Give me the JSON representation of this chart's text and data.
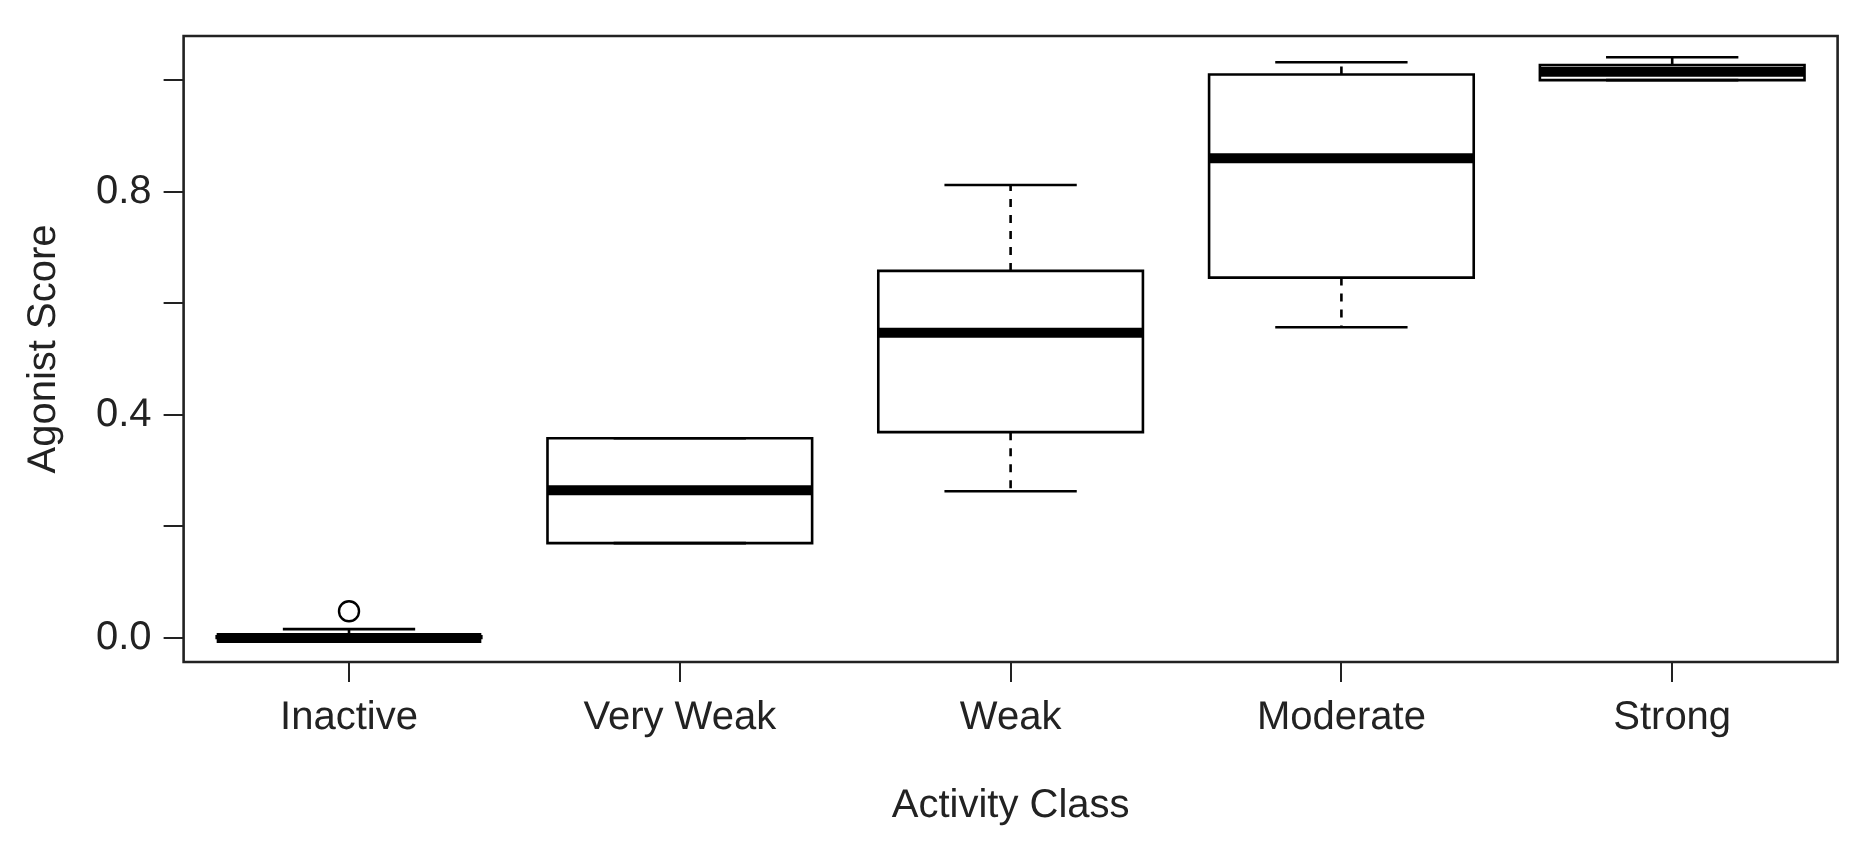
{
  "chart_data": {
    "type": "box",
    "xlabel": "Activity Class",
    "ylabel": "Agonist Score",
    "categories": [
      "Inactive",
      "Very Weak",
      "Weak",
      "Moderate",
      "Strong"
    ],
    "boxes": [
      {
        "low": 0.0,
        "q1": 0.0,
        "median": 0.0,
        "q3": 0.003,
        "high": 0.016,
        "outliers": [
          0.048
        ]
      },
      {
        "low": 0.17,
        "q1": 0.17,
        "median": 0.265,
        "q3": 0.358,
        "high": 0.358
      },
      {
        "low": 0.263,
        "q1": 0.369,
        "median": 0.547,
        "q3": 0.658,
        "high": 0.812
      },
      {
        "low": 0.557,
        "q1": 0.646,
        "median": 0.86,
        "q3": 1.01,
        "high": 1.032
      },
      {
        "low": 1.0,
        "q1": 1.0,
        "median": 1.015,
        "q3": 1.027,
        "high": 1.041
      }
    ],
    "color": "#000000",
    "ylim": [
      -0.043,
      1.079
    ],
    "yticks": [
      {
        "value": 0,
        "label": "0.0"
      },
      {
        "value": 0.2,
        "label": null
      },
      {
        "value": 0.4,
        "label": "0.4"
      },
      {
        "value": 0.6,
        "label": null
      },
      {
        "value": 0.8,
        "label": "0.8"
      },
      {
        "value": 1,
        "label": null
      }
    ],
    "grid": false,
    "legend": false
  }
}
